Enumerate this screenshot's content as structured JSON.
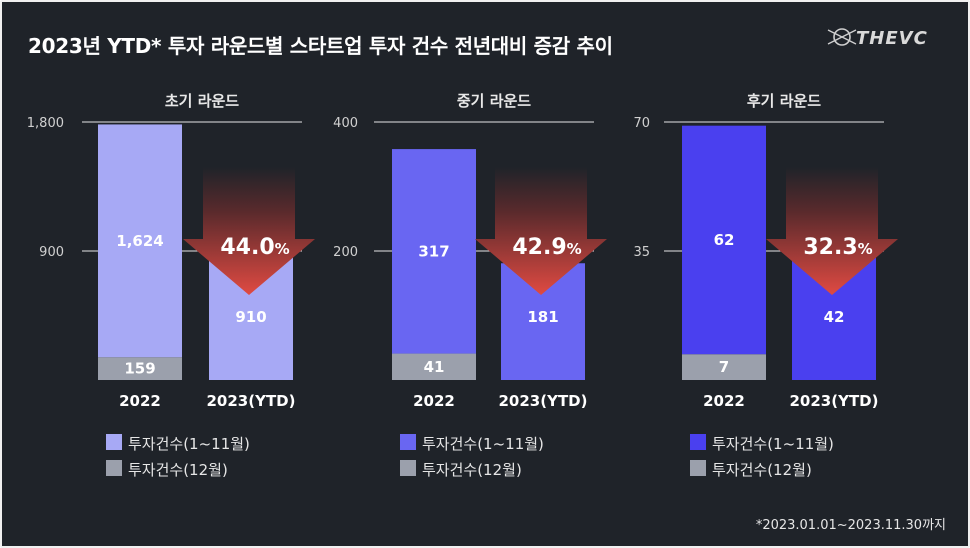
{
  "title": "2023년 YTD* 투자 라운드별 스타트업 투자 건수 전년대비 증감 추이",
  "logo": "THEVC",
  "footnote": "*2023.01.01~2023.11.30까지",
  "colors": {
    "background": "#1f2329",
    "q4": "#9ba0ac",
    "arrow_top": "#1f2329",
    "arrow_bottom": "#e04a42"
  },
  "chart_data": [
    {
      "type": "bar",
      "title": "초기 라운드",
      "categories": [
        "2022",
        "2023(YTD)"
      ],
      "series": [
        {
          "name": "투자건수(1~11월)",
          "values": [
            1624,
            910
          ]
        },
        {
          "name": "투자건수(12월)",
          "values": [
            159,
            null
          ]
        }
      ],
      "ylim": [
        0,
        1800
      ],
      "yticks": [
        900,
        1800
      ],
      "ytick_labels": [
        "900",
        "1,800"
      ],
      "value_labels": [
        "1,624",
        "159",
        "910"
      ],
      "change": "44.0",
      "change_unit": "%",
      "color": "#a7a9f5",
      "legend": [
        "투자건수(1~11월)",
        "투자건수(12월)"
      ]
    },
    {
      "type": "bar",
      "title": "중기 라운드",
      "categories": [
        "2022",
        "2023(YTD)"
      ],
      "series": [
        {
          "name": "투자건수(1~11월)",
          "values": [
            317,
            181
          ]
        },
        {
          "name": "투자건수(12월)",
          "values": [
            41,
            null
          ]
        }
      ],
      "ylim": [
        0,
        400
      ],
      "yticks": [
        200,
        400
      ],
      "ytick_labels": [
        "200",
        "400"
      ],
      "value_labels": [
        "317",
        "41",
        "181"
      ],
      "change": "42.9",
      "change_unit": "%",
      "color": "#6966f2",
      "legend": [
        "투자건수(1~11월)",
        "투자건수(12월)"
      ]
    },
    {
      "type": "bar",
      "title": "후기 라운드",
      "categories": [
        "2022",
        "2023(YTD)"
      ],
      "series": [
        {
          "name": "투자건수(1~11월)",
          "values": [
            62,
            42
          ]
        },
        {
          "name": "투자건수(12월)",
          "values": [
            7,
            null
          ]
        }
      ],
      "ylim": [
        0,
        70
      ],
      "yticks": [
        35,
        70
      ],
      "ytick_labels": [
        "35",
        "70"
      ],
      "value_labels": [
        "62",
        "7",
        "42"
      ],
      "change": "32.3",
      "change_unit": "%",
      "color": "#4a40ef",
      "legend": [
        "투자건수(1~11월)",
        "투자건수(12월)"
      ]
    }
  ]
}
